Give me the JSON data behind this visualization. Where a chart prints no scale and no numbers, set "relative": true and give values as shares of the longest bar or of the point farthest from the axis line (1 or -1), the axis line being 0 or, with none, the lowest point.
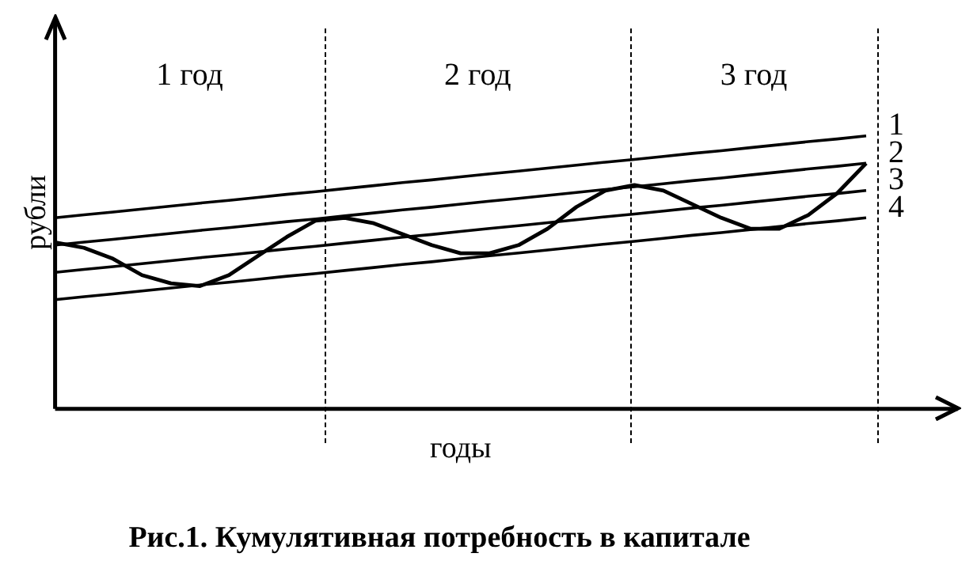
{
  "chart_data": {
    "type": "line",
    "title": "Рис.1. Кумулятивная потребность в капитале",
    "xlabel": "годы",
    "ylabel": "рубли",
    "relative": true,
    "tick_labels": false,
    "grid": false,
    "legend": false,
    "marker": "none",
    "line_style": "solid",
    "annotations": [
      "1 год",
      "2 год",
      "3 год"
    ],
    "categories": [
      null,
      null,
      null,
      null,
      null,
      null,
      null,
      null,
      null,
      null,
      null,
      null,
      null,
      null,
      null,
      null,
      null,
      null,
      null,
      null,
      null,
      null,
      null,
      null,
      null,
      null,
      null,
      null,
      null
    ],
    "series": [
      {
        "name": "1",
        "color": "#000000",
        "values": [
          0.7,
          0.711,
          0.721,
          0.732,
          0.743,
          0.754,
          0.764,
          0.775,
          0.786,
          0.796,
          0.807,
          0.818,
          0.829,
          0.839,
          0.85,
          0.861,
          0.871,
          0.882,
          0.893,
          0.904,
          0.914,
          0.925,
          0.936,
          0.946,
          0.957,
          0.968,
          0.979,
          0.989,
          1.0
        ]
      },
      {
        "name": "2",
        "color": "#000000",
        "values": [
          0.6,
          0.611,
          0.621,
          0.632,
          0.643,
          0.654,
          0.664,
          0.675,
          0.686,
          0.696,
          0.707,
          0.718,
          0.729,
          0.739,
          0.75,
          0.761,
          0.771,
          0.782,
          0.793,
          0.804,
          0.814,
          0.825,
          0.836,
          0.846,
          0.857,
          0.868,
          0.879,
          0.889,
          0.9
        ]
      },
      {
        "name": "3",
        "color": "#000000",
        "values": [
          0.5,
          0.511,
          0.521,
          0.532,
          0.543,
          0.554,
          0.564,
          0.575,
          0.586,
          0.596,
          0.607,
          0.618,
          0.629,
          0.639,
          0.65,
          0.661,
          0.671,
          0.682,
          0.693,
          0.704,
          0.714,
          0.725,
          0.736,
          0.746,
          0.757,
          0.768,
          0.779,
          0.789,
          0.8
        ]
      },
      {
        "name": "4",
        "color": "#000000",
        "values": [
          0.4,
          0.411,
          0.421,
          0.432,
          0.443,
          0.454,
          0.464,
          0.475,
          0.486,
          0.496,
          0.507,
          0.518,
          0.529,
          0.539,
          0.55,
          0.561,
          0.571,
          0.582,
          0.593,
          0.604,
          0.614,
          0.625,
          0.636,
          0.646,
          0.657,
          0.668,
          0.679,
          0.689,
          0.7
        ]
      },
      {
        "color": "#000000",
        "values": [
          0.61,
          0.59,
          0.55,
          0.49,
          0.46,
          0.45,
          0.49,
          0.56,
          0.63,
          0.69,
          0.7,
          0.68,
          0.64,
          0.6,
          0.57,
          0.57,
          0.6,
          0.66,
          0.74,
          0.8,
          0.82,
          0.8,
          0.75,
          0.7,
          0.66,
          0.66,
          0.71,
          0.79,
          0.9
        ]
      }
    ]
  }
}
